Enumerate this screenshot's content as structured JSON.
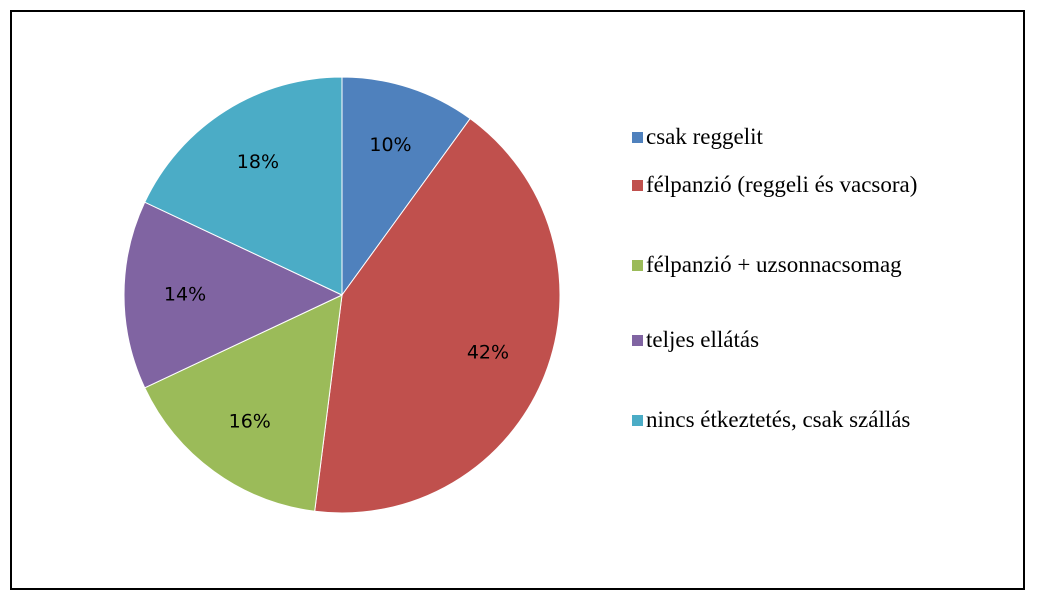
{
  "chart_data": {
    "type": "pie",
    "categories": [
      "csak reggelit",
      "félpanzió (reggeli és vacsora)",
      "félpanzió + uzsonnacsomag",
      "teljes ellátás",
      "nincs étkeztetés, csak szállás"
    ],
    "values": [
      10,
      42,
      16,
      14,
      18
    ],
    "value_labels": [
      "10%",
      "42%",
      "16%",
      "14%",
      "18%"
    ],
    "colors": [
      "#4f81bd",
      "#c0504d",
      "#9bbb59",
      "#8064a2",
      "#4bacc6"
    ],
    "legend": "right"
  }
}
